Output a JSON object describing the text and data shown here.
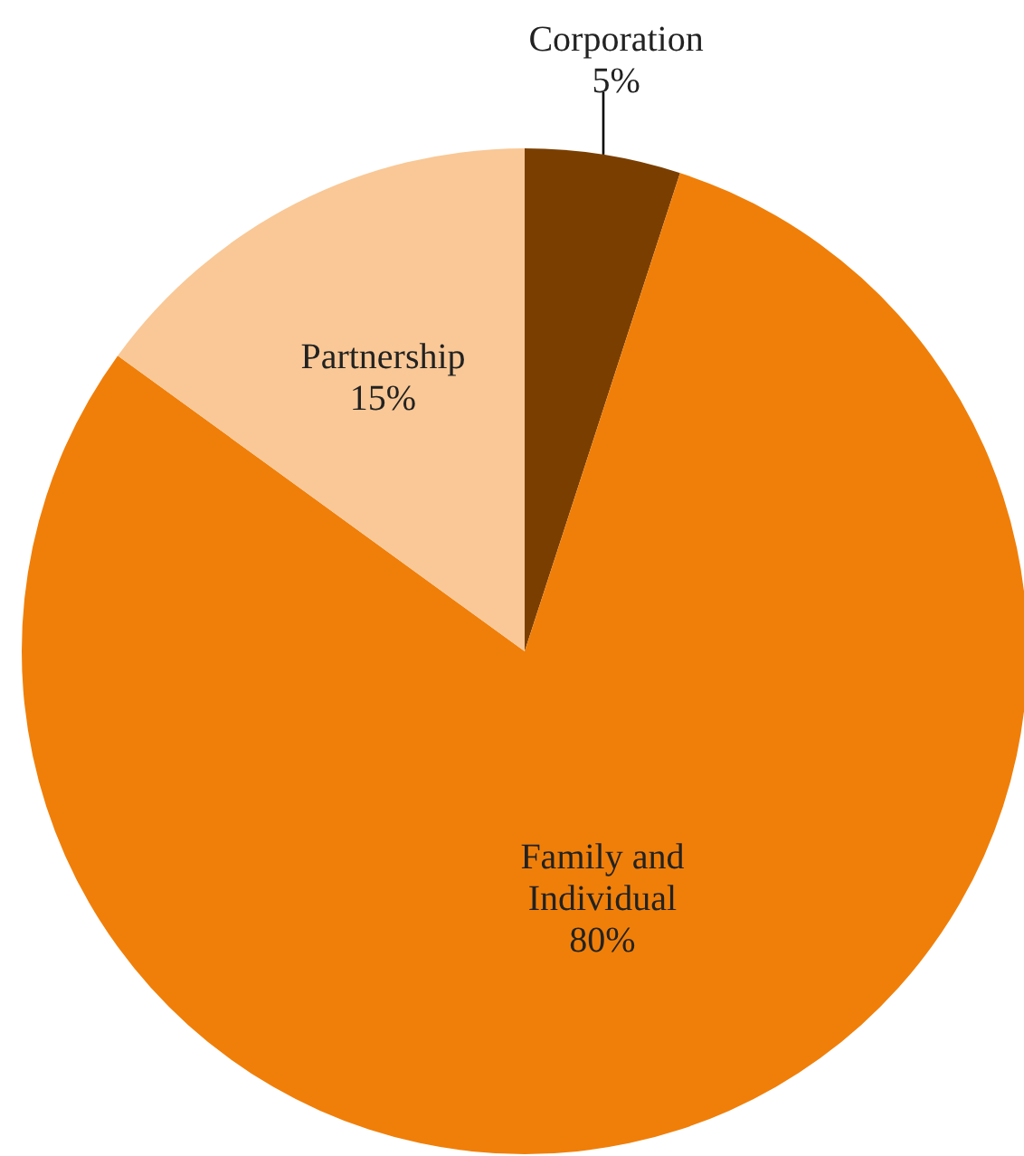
{
  "chart_data": {
    "type": "pie",
    "categories": [
      "Corporation",
      "Family and Individual",
      "Partnership"
    ],
    "values": [
      5,
      80,
      15
    ],
    "value_labels": [
      "5%",
      "80%",
      "15%"
    ],
    "colors": [
      "#7a3f00",
      "#f07f09",
      "#f9c896"
    ]
  }
}
